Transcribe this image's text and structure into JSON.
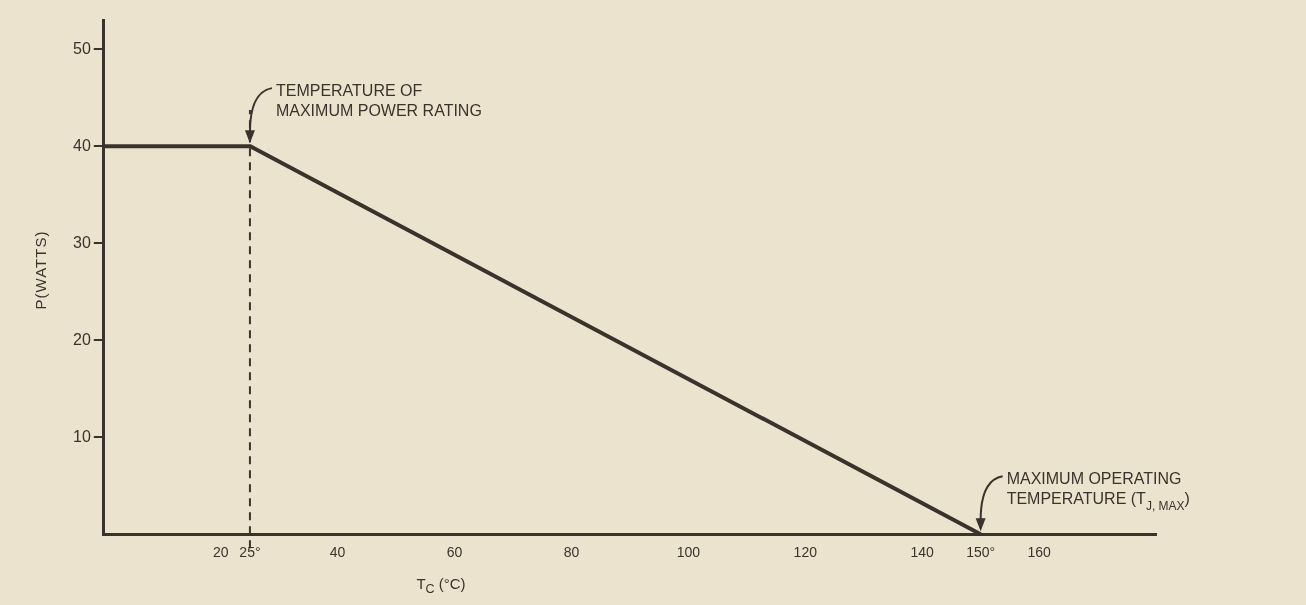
{
  "chart_data": {
    "type": "line",
    "xlabel": "T$_{C}$ (°C)",
    "ylabel": "P(WATTS)",
    "x": [
      0,
      25,
      150
    ],
    "series": [
      {
        "color": "#3a332c",
        "values": [
          40,
          40,
          0
        ]
      }
    ],
    "xlim": [
      0,
      180
    ],
    "xticks": [
      20,
      {
        "value": 25,
        "label": "25°"
      },
      40,
      60,
      80,
      100,
      120,
      140,
      {
        "value": 150,
        "label": "150°"
      },
      160
    ],
    "ylim": [
      0,
      53
    ],
    "yticks": [
      10,
      20,
      30,
      40,
      50
    ],
    "grid": false,
    "legend": false,
    "marker": "none",
    "line_style": "solid",
    "ref_lines": [
      {
        "axis": "x",
        "value": 25,
        "line_style": "dashed",
        "color": "#3a332c"
      }
    ],
    "annotations": [
      {
        "text": "TEMPERATURE OF\nMAXIMUM POWER RATING",
        "x": 25,
        "y": 40
      },
      {
        "text": "MAXIMUM OPERATING\nTEMPERATURE (T$_{J, MAX}$)",
        "x": 150,
        "y": 0
      }
    ]
  }
}
